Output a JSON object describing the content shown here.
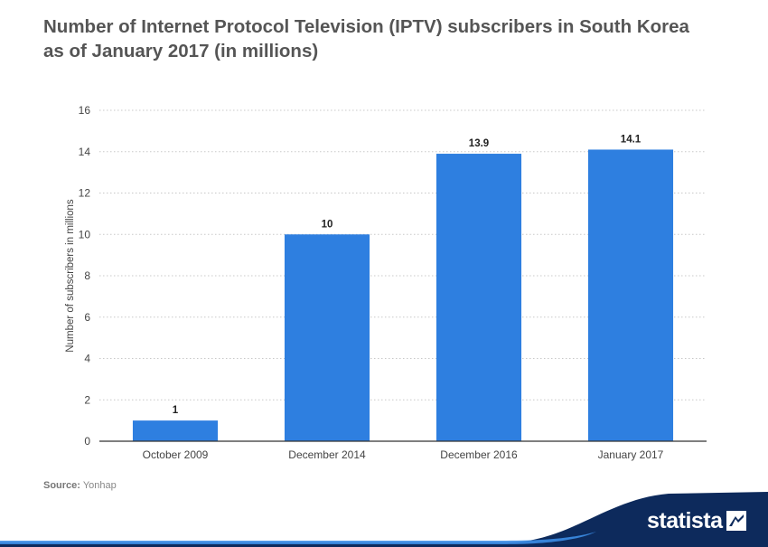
{
  "title_lines": [
    "Number of Internet Protocol Television (IPTV) subscribers in South Korea",
    "as of January 2017 (in millions)"
  ],
  "source": {
    "label": "Source:",
    "value": "Yonhap"
  },
  "brand": {
    "name": "statista",
    "icon": "statista-logo-icon"
  },
  "colors": {
    "bar": "#2e7fe0",
    "grid": "#c8c8c8",
    "axis": "#333333",
    "brand_bg": "#0d2a5c",
    "accent": "#3c8de6"
  },
  "chart_data": {
    "type": "bar",
    "categories": [
      "October 2009",
      "December 2014",
      "December 2016",
      "January 2017"
    ],
    "values": [
      1,
      10,
      13.9,
      14.1
    ],
    "value_labels": [
      "1",
      "10",
      "13.9",
      "14.1"
    ],
    "ylabel": "Number of subscribers in millions",
    "xlabel": "",
    "ylim": [
      0,
      16
    ],
    "yticks": [
      0,
      2,
      4,
      6,
      8,
      10,
      12,
      14,
      16
    ],
    "grid": true
  }
}
